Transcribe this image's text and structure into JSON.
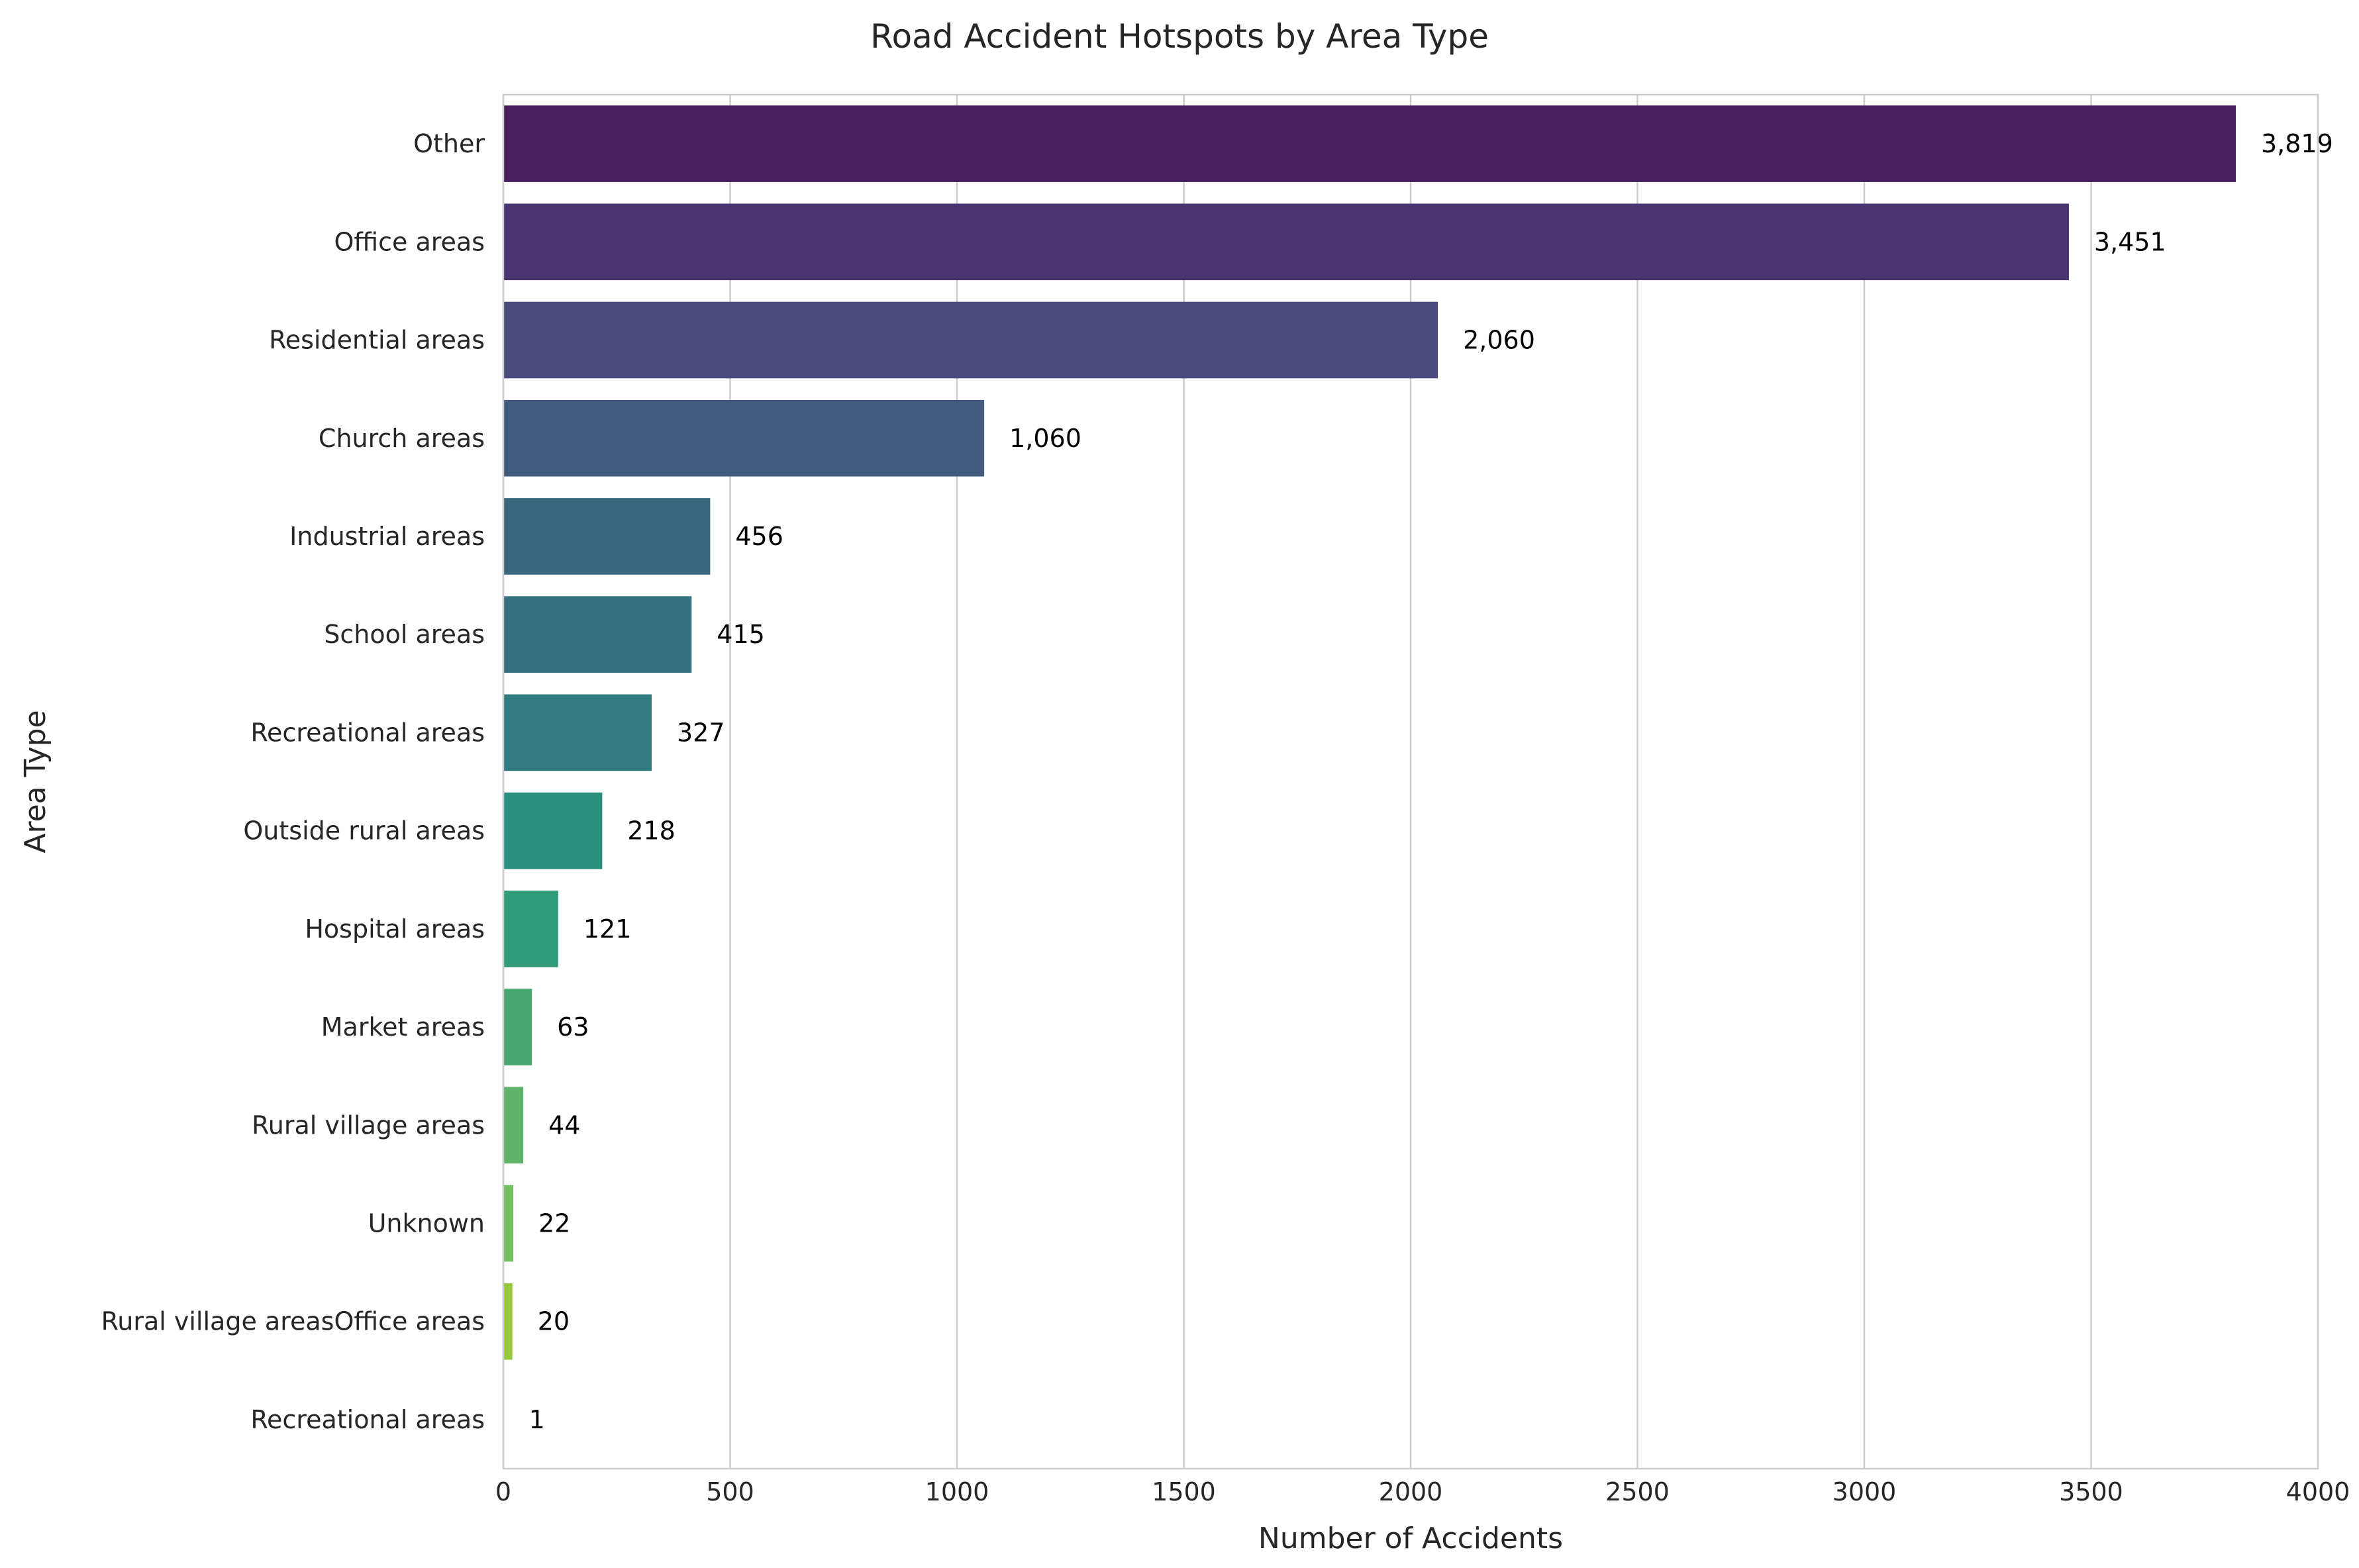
{
  "chart_data": {
    "type": "bar",
    "orientation": "horizontal",
    "title": "Road Accident Hotspots by Area Type",
    "xlabel": "Number of Accidents",
    "ylabel": "Area Type",
    "xlim": [
      0,
      4000
    ],
    "xticks": [
      0,
      500,
      1000,
      1500,
      2000,
      2500,
      3000,
      3500,
      4000
    ],
    "xtick_labels": [
      "0",
      "500",
      "1000",
      "1500",
      "2000",
      "2500",
      "3000",
      "3500",
      "4000"
    ],
    "grid": "vertical",
    "categories": [
      "Other",
      "Office areas",
      "Residential areas",
      "Church areas",
      "Industrial areas",
      "School areas",
      "Recreational areas",
      "Outside rural areas",
      "Hospital areas",
      "Market areas",
      "Rural village areas",
      "Unknown",
      "Rural village areasOffice areas",
      "Recreational areas"
    ],
    "values": [
      3819,
      3451,
      2060,
      1060,
      456,
      415,
      327,
      218,
      121,
      63,
      44,
      22,
      20,
      1
    ],
    "value_labels": [
      "3,819",
      "3,451",
      "2,060",
      "1,060",
      "456",
      "415",
      "327",
      "218",
      "121",
      "63",
      "44",
      "22",
      "20",
      "1"
    ],
    "colors": [
      "#481f5f",
      "#493671",
      "#4a4a7c",
      "#435b7e",
      "#3b6680",
      "#357180",
      "#307b7f",
      "#2c8f7e",
      "#329c7a",
      "#48a76f",
      "#5fb469",
      "#74bd62",
      "#96c83e",
      "#cfe02a"
    ],
    "palette": "viridis"
  }
}
